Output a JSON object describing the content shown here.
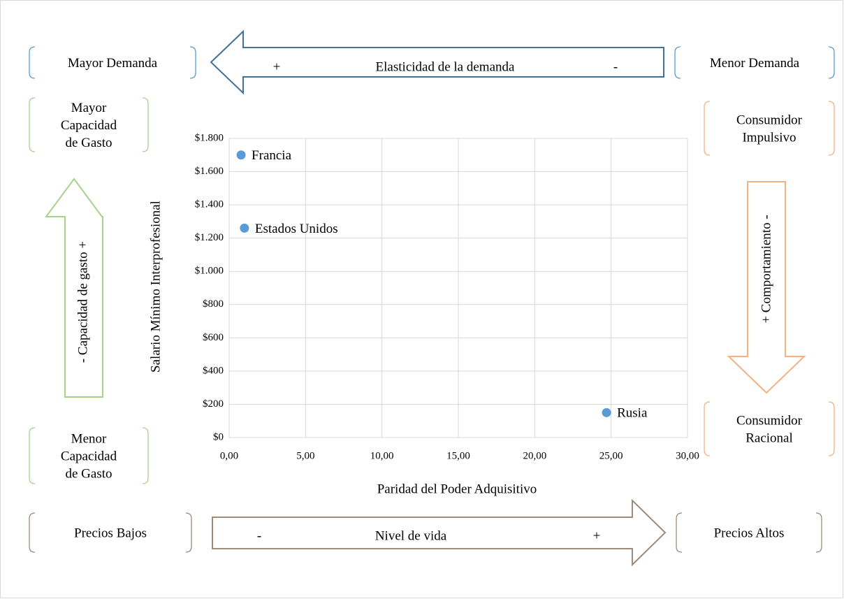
{
  "chart_data": {
    "type": "scatter",
    "x_label": "Paridad del Poder Adquisitivo",
    "y_label": "Salario Mínimo Interprofesional",
    "x": [
      0.78,
      1.0,
      24.7
    ],
    "values": [
      1700,
      1260,
      150
    ],
    "point_labels": [
      "Francia",
      "Estados Unidos",
      "Rusia"
    ],
    "color": "#5b9bd5",
    "xlim": [
      0,
      30
    ],
    "ylim": [
      0,
      1800
    ],
    "xticks": [
      {
        "value": 0,
        "label": "0,00"
      },
      {
        "value": 5,
        "label": "5,00"
      },
      {
        "value": 10,
        "label": "10,00"
      },
      {
        "value": 15,
        "label": "15,00"
      },
      {
        "value": 20,
        "label": "20,00"
      },
      {
        "value": 25,
        "label": "25,00"
      },
      {
        "value": 30,
        "label": "30,00"
      }
    ],
    "yticks": [
      {
        "value": 0,
        "label": "$0"
      },
      {
        "value": 200,
        "label": "$200"
      },
      {
        "value": 400,
        "label": "$400"
      },
      {
        "value": 600,
        "label": "$600"
      },
      {
        "value": 800,
        "label": "$800"
      },
      {
        "value": 1000,
        "label": "$1.000"
      },
      {
        "value": 1200,
        "label": "$1.200"
      },
      {
        "value": 1400,
        "label": "$1.400"
      },
      {
        "value": 1600,
        "label": "$1.600"
      },
      {
        "value": 1800,
        "label": "$1.800"
      }
    ],
    "grid": true,
    "annotations": [
      [
        "Mayor Demanda"
      ],
      [
        "Menor Demanda"
      ],
      [
        "Mayor",
        "Capacidad",
        "de Gasto"
      ],
      [
        "Menor",
        "Capacidad",
        "de Gasto"
      ],
      [
        "Consumidor",
        "Impulsivo"
      ],
      [
        "Consumidor",
        "Racional"
      ],
      [
        "Precios Bajos"
      ],
      [
        "Precios Altos"
      ]
    ],
    "arrows": [
      [
        "+",
        "Elasticidad de la demanda",
        "-"
      ],
      [
        "- Capacidad de gasto +"
      ],
      [
        "+ Comportamiento -"
      ],
      [
        "-",
        "Nivel de vida",
        "+"
      ]
    ]
  }
}
